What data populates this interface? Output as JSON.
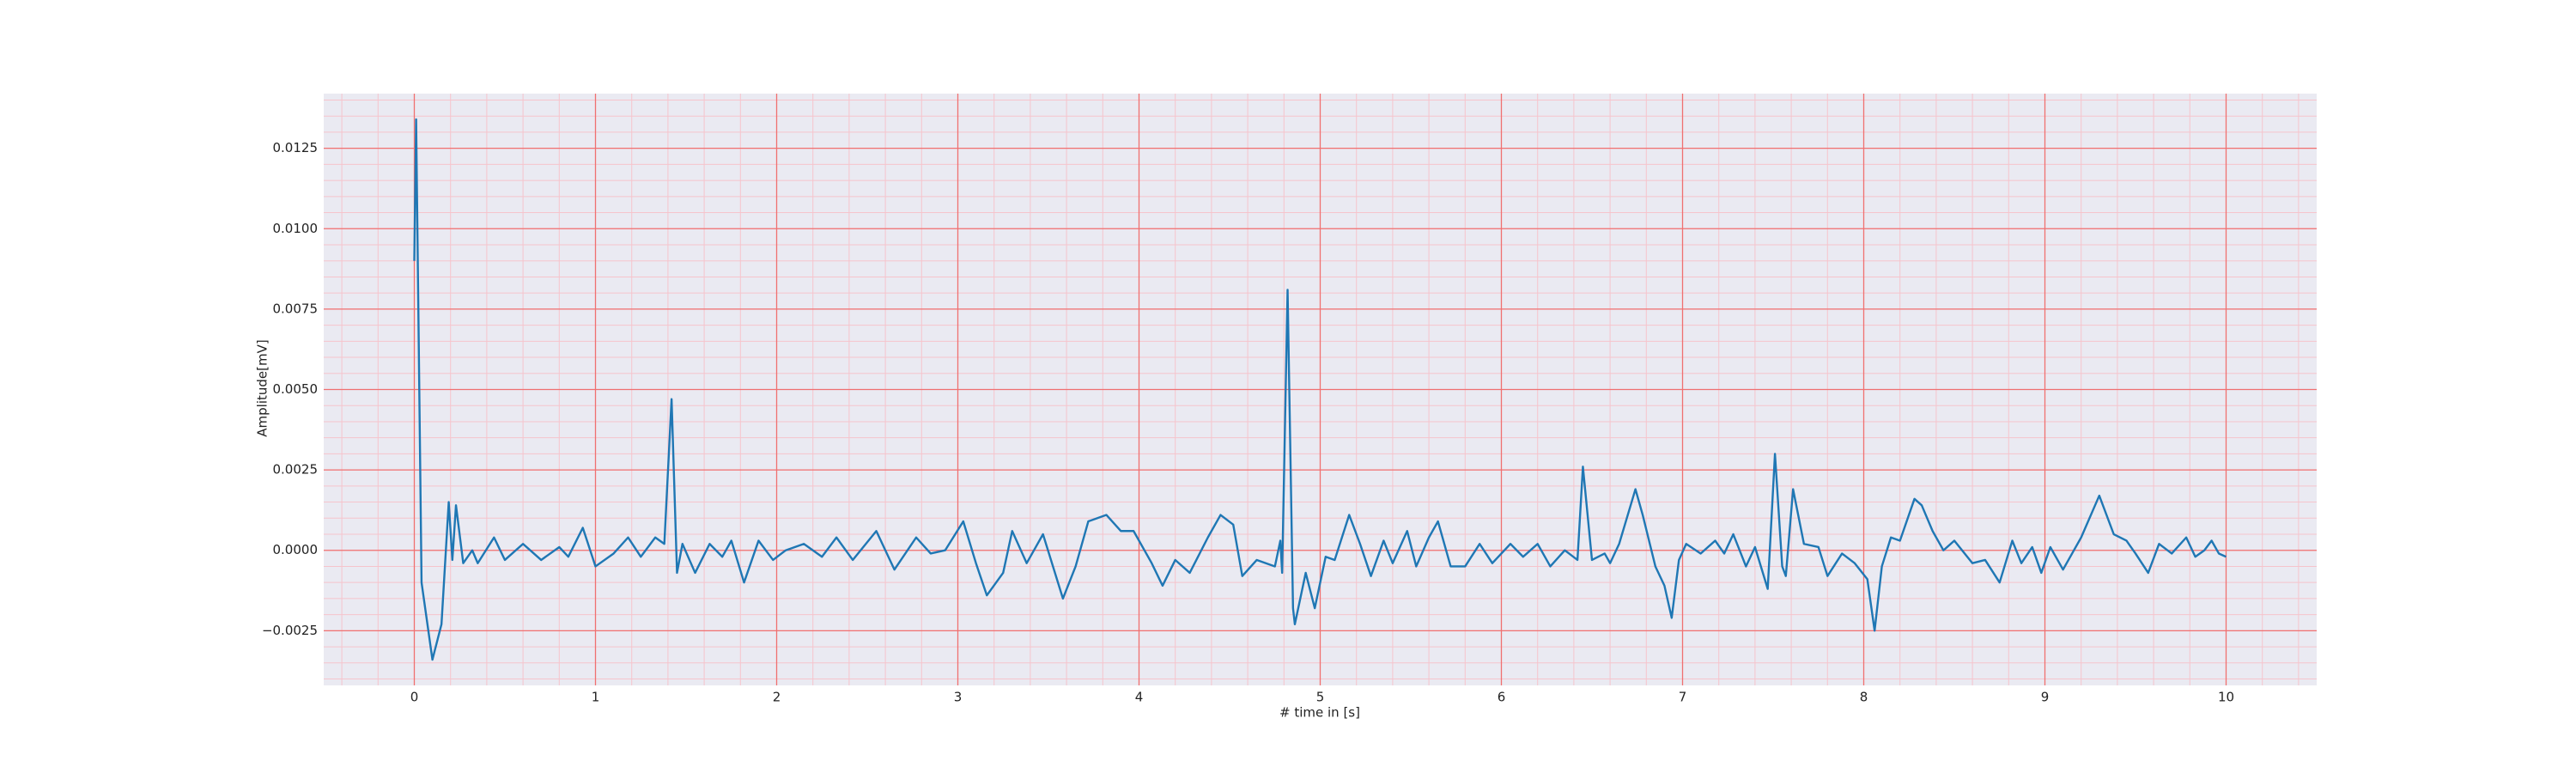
{
  "chart_data": {
    "type": "line",
    "xlabel": "# time in [s]",
    "ylabel": "Amplitude[mV]",
    "color": "#1f77b4",
    "background": "#eaeaf2",
    "grid_color": "#f07070",
    "minor_grid_color": "#f6c4cc",
    "grid": true,
    "xminor_step": 0.2,
    "yminor_step": 0.0005,
    "xlim": [
      -0.5,
      10.5
    ],
    "ylim": [
      -0.0042,
      0.0142
    ],
    "xticks": [
      0,
      1,
      2,
      3,
      4,
      5,
      6,
      7,
      8,
      9,
      10
    ],
    "yticks": [
      {
        "value": -0.0025,
        "label": "−0.0025"
      },
      {
        "value": 0,
        "label": "0.0000"
      },
      {
        "value": 0.0025,
        "label": "0.0025"
      },
      {
        "value": 0.005,
        "label": "0.0050"
      },
      {
        "value": 0.0075,
        "label": "0.0075"
      },
      {
        "value": 0.01,
        "label": "0.0100"
      },
      {
        "value": 0.0125,
        "label": "0.0125"
      }
    ],
    "x": [
      0,
      0.01,
      0.04,
      0.1,
      0.15,
      0.19,
      0.21,
      0.23,
      0.27,
      0.32,
      0.35,
      0.44,
      0.5,
      0.6,
      0.7,
      0.8,
      0.85,
      0.93,
      1.0,
      1.1,
      1.18,
      1.25,
      1.33,
      1.38,
      1.42,
      1.45,
      1.48,
      1.55,
      1.63,
      1.7,
      1.75,
      1.82,
      1.9,
      1.98,
      2.05,
      2.15,
      2.25,
      2.33,
      2.42,
      2.55,
      2.65,
      2.77,
      2.85,
      2.93,
      3.03,
      3.1,
      3.16,
      3.25,
      3.3,
      3.38,
      3.47,
      3.58,
      3.65,
      3.72,
      3.82,
      3.9,
      3.97,
      4.07,
      4.13,
      4.2,
      4.28,
      4.38,
      4.45,
      4.52,
      4.57,
      4.65,
      4.75,
      4.78,
      4.79,
      4.82,
      4.85,
      4.86,
      4.92,
      4.97,
      5.03,
      5.08,
      5.16,
      5.22,
      5.28,
      5.35,
      5.4,
      5.48,
      5.53,
      5.6,
      5.65,
      5.72,
      5.8,
      5.88,
      5.95,
      6.05,
      6.12,
      6.2,
      6.27,
      6.35,
      6.42,
      6.45,
      6.5,
      6.57,
      6.6,
      6.65,
      6.74,
      6.78,
      6.85,
      6.9,
      6.94,
      6.98,
      7.02,
      7.1,
      7.18,
      7.23,
      7.28,
      7.35,
      7.4,
      7.47,
      7.51,
      7.55,
      7.57,
      7.61,
      7.67,
      7.75,
      7.8,
      7.88,
      7.95,
      8.02,
      8.06,
      8.1,
      8.15,
      8.2,
      8.28,
      8.32,
      8.38,
      8.44,
      8.5,
      8.6,
      8.67,
      8.75,
      8.82,
      8.87,
      8.93,
      8.98,
      9.03,
      9.1,
      9.2,
      9.3,
      9.38,
      9.45,
      9.5,
      9.57,
      9.63,
      9.7,
      9.78,
      9.83,
      9.88,
      9.92,
      9.96,
      10.0
    ],
    "values": [
      0.009,
      0.0134,
      -0.001,
      -0.0034,
      -0.0023,
      0.0015,
      -0.0003,
      0.0014,
      -0.0004,
      0,
      -0.0004,
      0.0004,
      -0.0003,
      0.0002,
      -0.0003,
      0.0001,
      -0.0002,
      0.0007,
      -0.0005,
      -0.0001,
      0.0004,
      -0.0002,
      0.0004,
      0.0002,
      0.0047,
      -0.0007,
      0.0002,
      -0.0007,
      0.0002,
      -0.0002,
      0.0003,
      -0.001,
      0.0003,
      -0.0003,
      0,
      0.0002,
      -0.0002,
      0.0004,
      -0.0003,
      0.0006,
      -0.0006,
      0.0004,
      -0.0001,
      0,
      0.0009,
      -0.0004,
      -0.0014,
      -0.0007,
      0.0006,
      -0.0004,
      0.0005,
      -0.0015,
      -0.0005,
      0.0009,
      0.0011,
      0.0006,
      0.0006,
      -0.0004,
      -0.0011,
      -0.0003,
      -0.0007,
      0.0004,
      0.0011,
      0.0008,
      -0.0008,
      -0.0003,
      -0.0005,
      0.0003,
      -0.0007,
      0.0081,
      -0.0018,
      -0.0023,
      -0.0007,
      -0.0018,
      -0.0002,
      -0.0003,
      0.0011,
      0.0002,
      -0.0008,
      0.0003,
      -0.0004,
      0.0006,
      -0.0005,
      0.0004,
      0.0009,
      -0.0005,
      -0.0005,
      0.0002,
      -0.0004,
      0.0002,
      -0.0002,
      0.0002,
      -0.0005,
      0,
      -0.0003,
      0.0026,
      -0.0003,
      -0.0001,
      -0.0004,
      0.0002,
      0.0019,
      0.0011,
      -0.0005,
      -0.0011,
      -0.0021,
      -0.0003,
      0.0002,
      -0.0001,
      0.0003,
      -0.0001,
      0.0005,
      -0.0005,
      0.0001,
      -0.0012,
      0.003,
      -0.0005,
      -0.0008,
      0.0019,
      0.0002,
      0.0001,
      -0.0008,
      -0.0001,
      -0.0004,
      -0.0009,
      -0.0025,
      -0.0005,
      0.0004,
      0.0003,
      0.0016,
      0.0014,
      0.0006,
      0,
      0.0003,
      -0.0004,
      -0.0003,
      -0.001,
      0.0003,
      -0.0004,
      0.0001,
      -0.0007,
      0.0001,
      -0.0006,
      0.0004,
      0.0017,
      0.0005,
      0.0003,
      -0.0001,
      -0.0007,
      0.0002,
      -0.0001,
      0.0004,
      -0.0002,
      0,
      0.0003,
      -0.0001,
      -0.0002
    ]
  }
}
